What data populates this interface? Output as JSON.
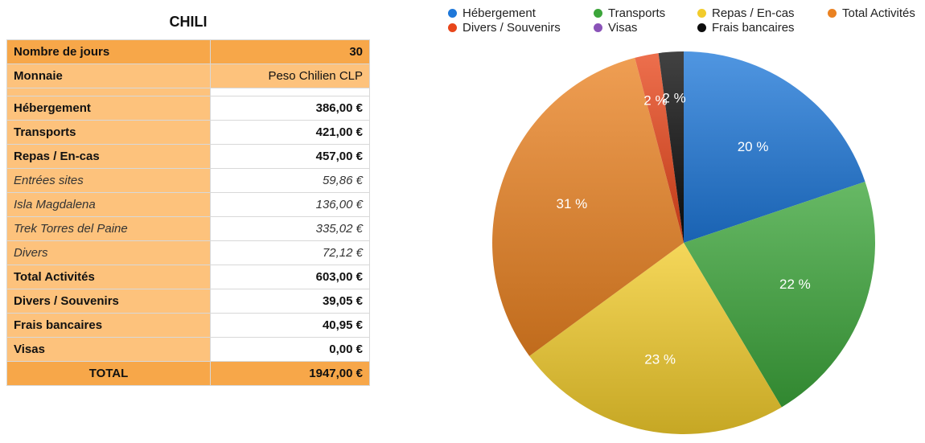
{
  "table": {
    "title": "CHILI",
    "rows": [
      {
        "label": "Nombre de jours",
        "value": "30"
      },
      {
        "label": "Monnaie",
        "value": "Peso Chilien CLP"
      },
      {
        "label": "Hébergement",
        "value": "386,00 €"
      },
      {
        "label": "Transports",
        "value": "421,00 €"
      },
      {
        "label": "Repas / En-cas",
        "value": "457,00 €"
      },
      {
        "label": "Entrées sites",
        "value": "59,86 €"
      },
      {
        "label": "Isla Magdalena",
        "value": "136,00 €"
      },
      {
        "label": "Trek Torres del Paine",
        "value": "335,02 €"
      },
      {
        "label": "Divers",
        "value": "72,12 €"
      },
      {
        "label": "Total Activités",
        "value": "603,00 €"
      },
      {
        "label": "Divers / Souvenirs",
        "value": "39,05 €"
      },
      {
        "label": "Frais bancaires",
        "value": "40,95 €"
      },
      {
        "label": "Visas",
        "value": "0,00 €"
      }
    ],
    "total_label": "TOTAL",
    "total_value": "1947,00 €"
  },
  "chart_data": {
    "type": "pie",
    "legend_position": "top",
    "slices": [
      {
        "name": "Hébergement",
        "value": 386.0,
        "label": "20 %",
        "color": "#1f78d9"
      },
      {
        "name": "Transports",
        "value": 421.0,
        "label": "22 %",
        "color": "#3ca53a"
      },
      {
        "name": "Repas / En-cas",
        "value": 457.0,
        "label": "23 %",
        "color": "#f2cc2c"
      },
      {
        "name": "Total Activités",
        "value": 603.0,
        "label": "31 %",
        "color": "#ea8222"
      },
      {
        "name": "Divers / Souvenirs",
        "value": 39.05,
        "label": "2 %",
        "color": "#e8461b"
      },
      {
        "name": "Visas",
        "value": 0.0,
        "label": "",
        "color": "#8a53b8"
      },
      {
        "name": "Frais bancaires",
        "value": 40.95,
        "label": "2 %",
        "color": "#0d0d0d"
      }
    ]
  }
}
